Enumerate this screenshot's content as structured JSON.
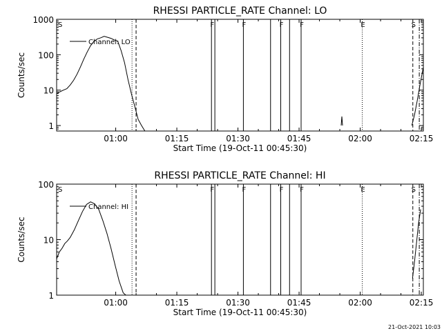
{
  "timestamp": "21-Oct-2021 10:03",
  "chart_data": [
    {
      "type": "line",
      "title": "RHESSI PARTICLE_RATE Channel: LO",
      "xlabel": "Start Time (19-Oct-11 00:45:30)",
      "ylabel": "Counts/sec",
      "yscale": "log",
      "ylim": [
        0.7,
        1000
      ],
      "xlim": [
        0,
        5400
      ],
      "x_ticks": [
        {
          "t": 870,
          "label": "01:00"
        },
        {
          "t": 1770,
          "label": "01:15"
        },
        {
          "t": 2670,
          "label": "01:30"
        },
        {
          "t": 3570,
          "label": "01:45"
        },
        {
          "t": 4470,
          "label": "02:00"
        },
        {
          "t": 5370,
          "label": "02:15"
        }
      ],
      "y_ticks": [
        {
          "v": 1,
          "label": "1"
        },
        {
          "v": 10,
          "label": "10"
        },
        {
          "v": 100,
          "label": "100"
        },
        {
          "v": 1000,
          "label": "1000"
        }
      ],
      "legend": {
        "label": "Channel: LO",
        "position": "top-left"
      },
      "series": [
        {
          "name": "Channel: LO",
          "segments": [
            {
              "x": [
                0,
                50,
                100,
                150,
                200,
                250,
                300,
                350,
                400,
                450,
                500,
                550,
                600,
                650,
                700,
                750,
                800,
                850,
                900,
                950,
                1000,
                1050,
                1100,
                1150,
                1200,
                1250,
                1300
              ],
              "y": [
                8,
                9,
                10,
                11,
                14,
                19,
                28,
                45,
                75,
                120,
                180,
                240,
                280,
                300,
                330,
                310,
                290,
                260,
                240,
                130,
                60,
                20,
                8,
                3.5,
                1.5,
                1,
                0.7
              ]
            },
            {
              "x": [
                4190,
                4200,
                4210
              ],
              "y": [
                1,
                1.8,
                1
              ]
            },
            {
              "x": [
                5230,
                5270,
                5310,
                5350,
                5400
              ],
              "y": [
                1,
                2,
                5,
                14,
                45
              ]
            }
          ]
        }
      ],
      "markers": [
        {
          "t": 1110,
          "style": "dotted",
          "label": ""
        },
        {
          "t": 1170,
          "style": "dashed",
          "label": ""
        },
        {
          "t": 2280,
          "style": "solid",
          "label": "F"
        },
        {
          "t": 2330,
          "style": "solid",
          "label": ""
        },
        {
          "t": 2750,
          "style": "solid",
          "label": "F"
        },
        {
          "t": 3150,
          "style": "solid",
          "label": ""
        },
        {
          "t": 3300,
          "style": "solid",
          "label": "F"
        },
        {
          "t": 3430,
          "style": "solid",
          "label": ""
        },
        {
          "t": 3600,
          "style": "solid",
          "label": "F"
        },
        {
          "t": 4500,
          "style": "dotted",
          "label": "E"
        },
        {
          "t": 5245,
          "style": "dashed",
          "label": "S"
        },
        {
          "t": 5340,
          "style": "dashdot",
          "label": ""
        }
      ],
      "corner_label": "S"
    },
    {
      "type": "line",
      "title": "RHESSI PARTICLE_RATE Channel: HI",
      "xlabel": "Start Time (19-Oct-11 00:45:30)",
      "ylabel": "Counts/sec",
      "yscale": "log",
      "ylim": [
        1,
        100
      ],
      "xlim": [
        0,
        5400
      ],
      "x_ticks": [
        {
          "t": 870,
          "label": "01:00"
        },
        {
          "t": 1770,
          "label": "01:15"
        },
        {
          "t": 2670,
          "label": "01:30"
        },
        {
          "t": 3570,
          "label": "01:45"
        },
        {
          "t": 4470,
          "label": "02:00"
        },
        {
          "t": 5370,
          "label": "02:15"
        }
      ],
      "y_ticks": [
        {
          "v": 1,
          "label": "1"
        },
        {
          "v": 10,
          "label": "10"
        },
        {
          "v": 100,
          "label": "100"
        }
      ],
      "legend": {
        "label": "Channel: HI",
        "position": "top-left"
      },
      "series": [
        {
          "name": "Channel: HI",
          "segments": [
            {
              "x": [
                0,
                40,
                80,
                120,
                160,
                200,
                260,
                320,
                380,
                440,
                500,
                560,
                620,
                680,
                740,
                800,
                860,
                920,
                980,
                1020
              ],
              "y": [
                4.5,
                6,
                7,
                8.5,
                9.5,
                11,
                15,
                22,
                32,
                43,
                48,
                44,
                35,
                22,
                13,
                7,
                3.5,
                1.8,
                1.1,
                1
              ]
            },
            {
              "x": [
                5240,
                5270,
                5300,
                5330,
                5360
              ],
              "y": [
                2,
                4,
                9,
                20,
                35
              ]
            }
          ]
        }
      ],
      "markers": [
        {
          "t": 1110,
          "style": "dotted",
          "label": ""
        },
        {
          "t": 1170,
          "style": "dashed",
          "label": ""
        },
        {
          "t": 2280,
          "style": "solid",
          "label": "F"
        },
        {
          "t": 2330,
          "style": "solid",
          "label": ""
        },
        {
          "t": 2750,
          "style": "solid",
          "label": "F"
        },
        {
          "t": 3150,
          "style": "solid",
          "label": ""
        },
        {
          "t": 3300,
          "style": "solid",
          "label": "F"
        },
        {
          "t": 3430,
          "style": "solid",
          "label": ""
        },
        {
          "t": 3600,
          "style": "solid",
          "label": "F"
        },
        {
          "t": 4500,
          "style": "dotted",
          "label": "E"
        },
        {
          "t": 5245,
          "style": "dashed",
          "label": "S"
        },
        {
          "t": 5340,
          "style": "dashdot",
          "label": ""
        }
      ],
      "corner_label": "S"
    }
  ]
}
